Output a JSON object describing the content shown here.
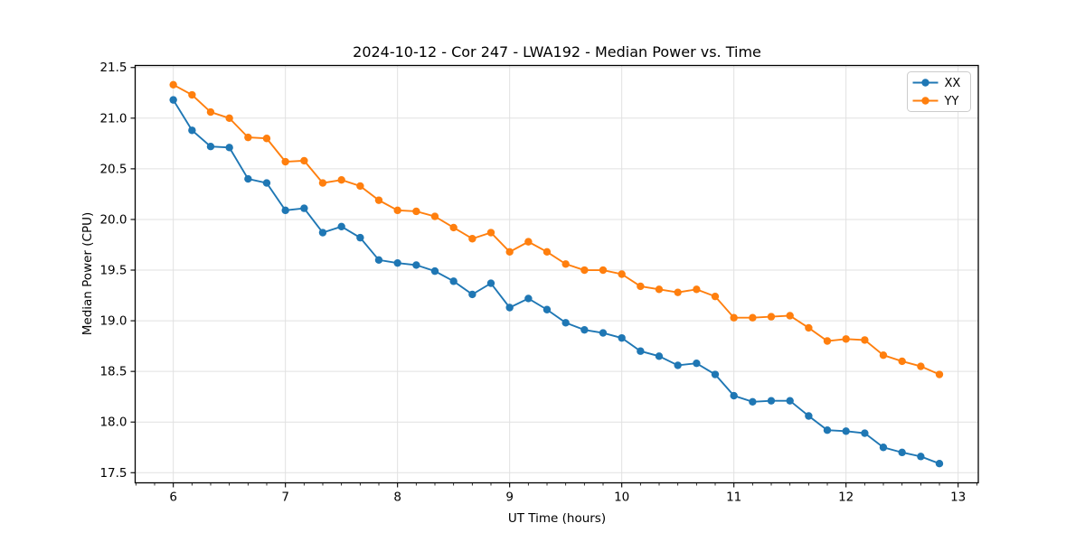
{
  "chart_data": {
    "type": "line",
    "title": "2024-10-12 - Cor 247 - LWA192 - Median Power vs. Time",
    "xlabel": "UT Time (hours)",
    "ylabel": "Median Power (CPU)",
    "xlim": [
      5.66,
      13.18
    ],
    "ylim": [
      17.4,
      21.52
    ],
    "x_major_ticks": [
      6,
      7,
      8,
      9,
      10,
      11,
      12,
      13
    ],
    "y_major_ticks": [
      17.5,
      18.0,
      18.5,
      19.0,
      19.5,
      20.0,
      20.5,
      21.0,
      21.5
    ],
    "x_minor_tick_step_hours": 0.16667,
    "grid": true,
    "grid_color": "#e1e1e1",
    "spine_color": "#000000",
    "legend_position": "upper right",
    "x": [
      6.0,
      6.167,
      6.333,
      6.5,
      6.667,
      6.833,
      7.0,
      7.167,
      7.333,
      7.5,
      7.667,
      7.833,
      8.0,
      8.167,
      8.333,
      8.5,
      8.667,
      8.833,
      9.0,
      9.167,
      9.333,
      9.5,
      9.667,
      9.833,
      10.0,
      10.167,
      10.333,
      10.5,
      10.667,
      10.833,
      11.0,
      11.167,
      11.333,
      11.5,
      11.667,
      11.833,
      12.0,
      12.167,
      12.333,
      12.5,
      12.667,
      12.833
    ],
    "series": [
      {
        "name": "XX",
        "color": "#1f77b4",
        "values": [
          21.18,
          20.88,
          20.72,
          20.71,
          20.4,
          20.36,
          20.09,
          20.11,
          19.87,
          19.93,
          19.82,
          19.6,
          19.57,
          19.55,
          19.49,
          19.39,
          19.26,
          19.37,
          19.13,
          19.22,
          19.11,
          18.98,
          18.91,
          18.88,
          18.83,
          18.7,
          18.65,
          18.56,
          18.58,
          18.47,
          18.26,
          18.2,
          18.21,
          18.21,
          18.06,
          17.92,
          17.91,
          17.89,
          17.75,
          17.7,
          17.66,
          17.59
        ]
      },
      {
        "name": "YY",
        "color": "#ff7f0e",
        "values": [
          21.33,
          21.23,
          21.06,
          21.0,
          20.81,
          20.8,
          20.57,
          20.58,
          20.36,
          20.39,
          20.33,
          20.19,
          20.09,
          20.08,
          20.03,
          19.92,
          19.81,
          19.87,
          19.68,
          19.78,
          19.68,
          19.56,
          19.5,
          19.5,
          19.46,
          19.34,
          19.31,
          19.28,
          19.31,
          19.24,
          19.03,
          19.03,
          19.04,
          19.05,
          18.93,
          18.8,
          18.82,
          18.81,
          18.66,
          18.6,
          18.55,
          18.47
        ]
      }
    ]
  }
}
